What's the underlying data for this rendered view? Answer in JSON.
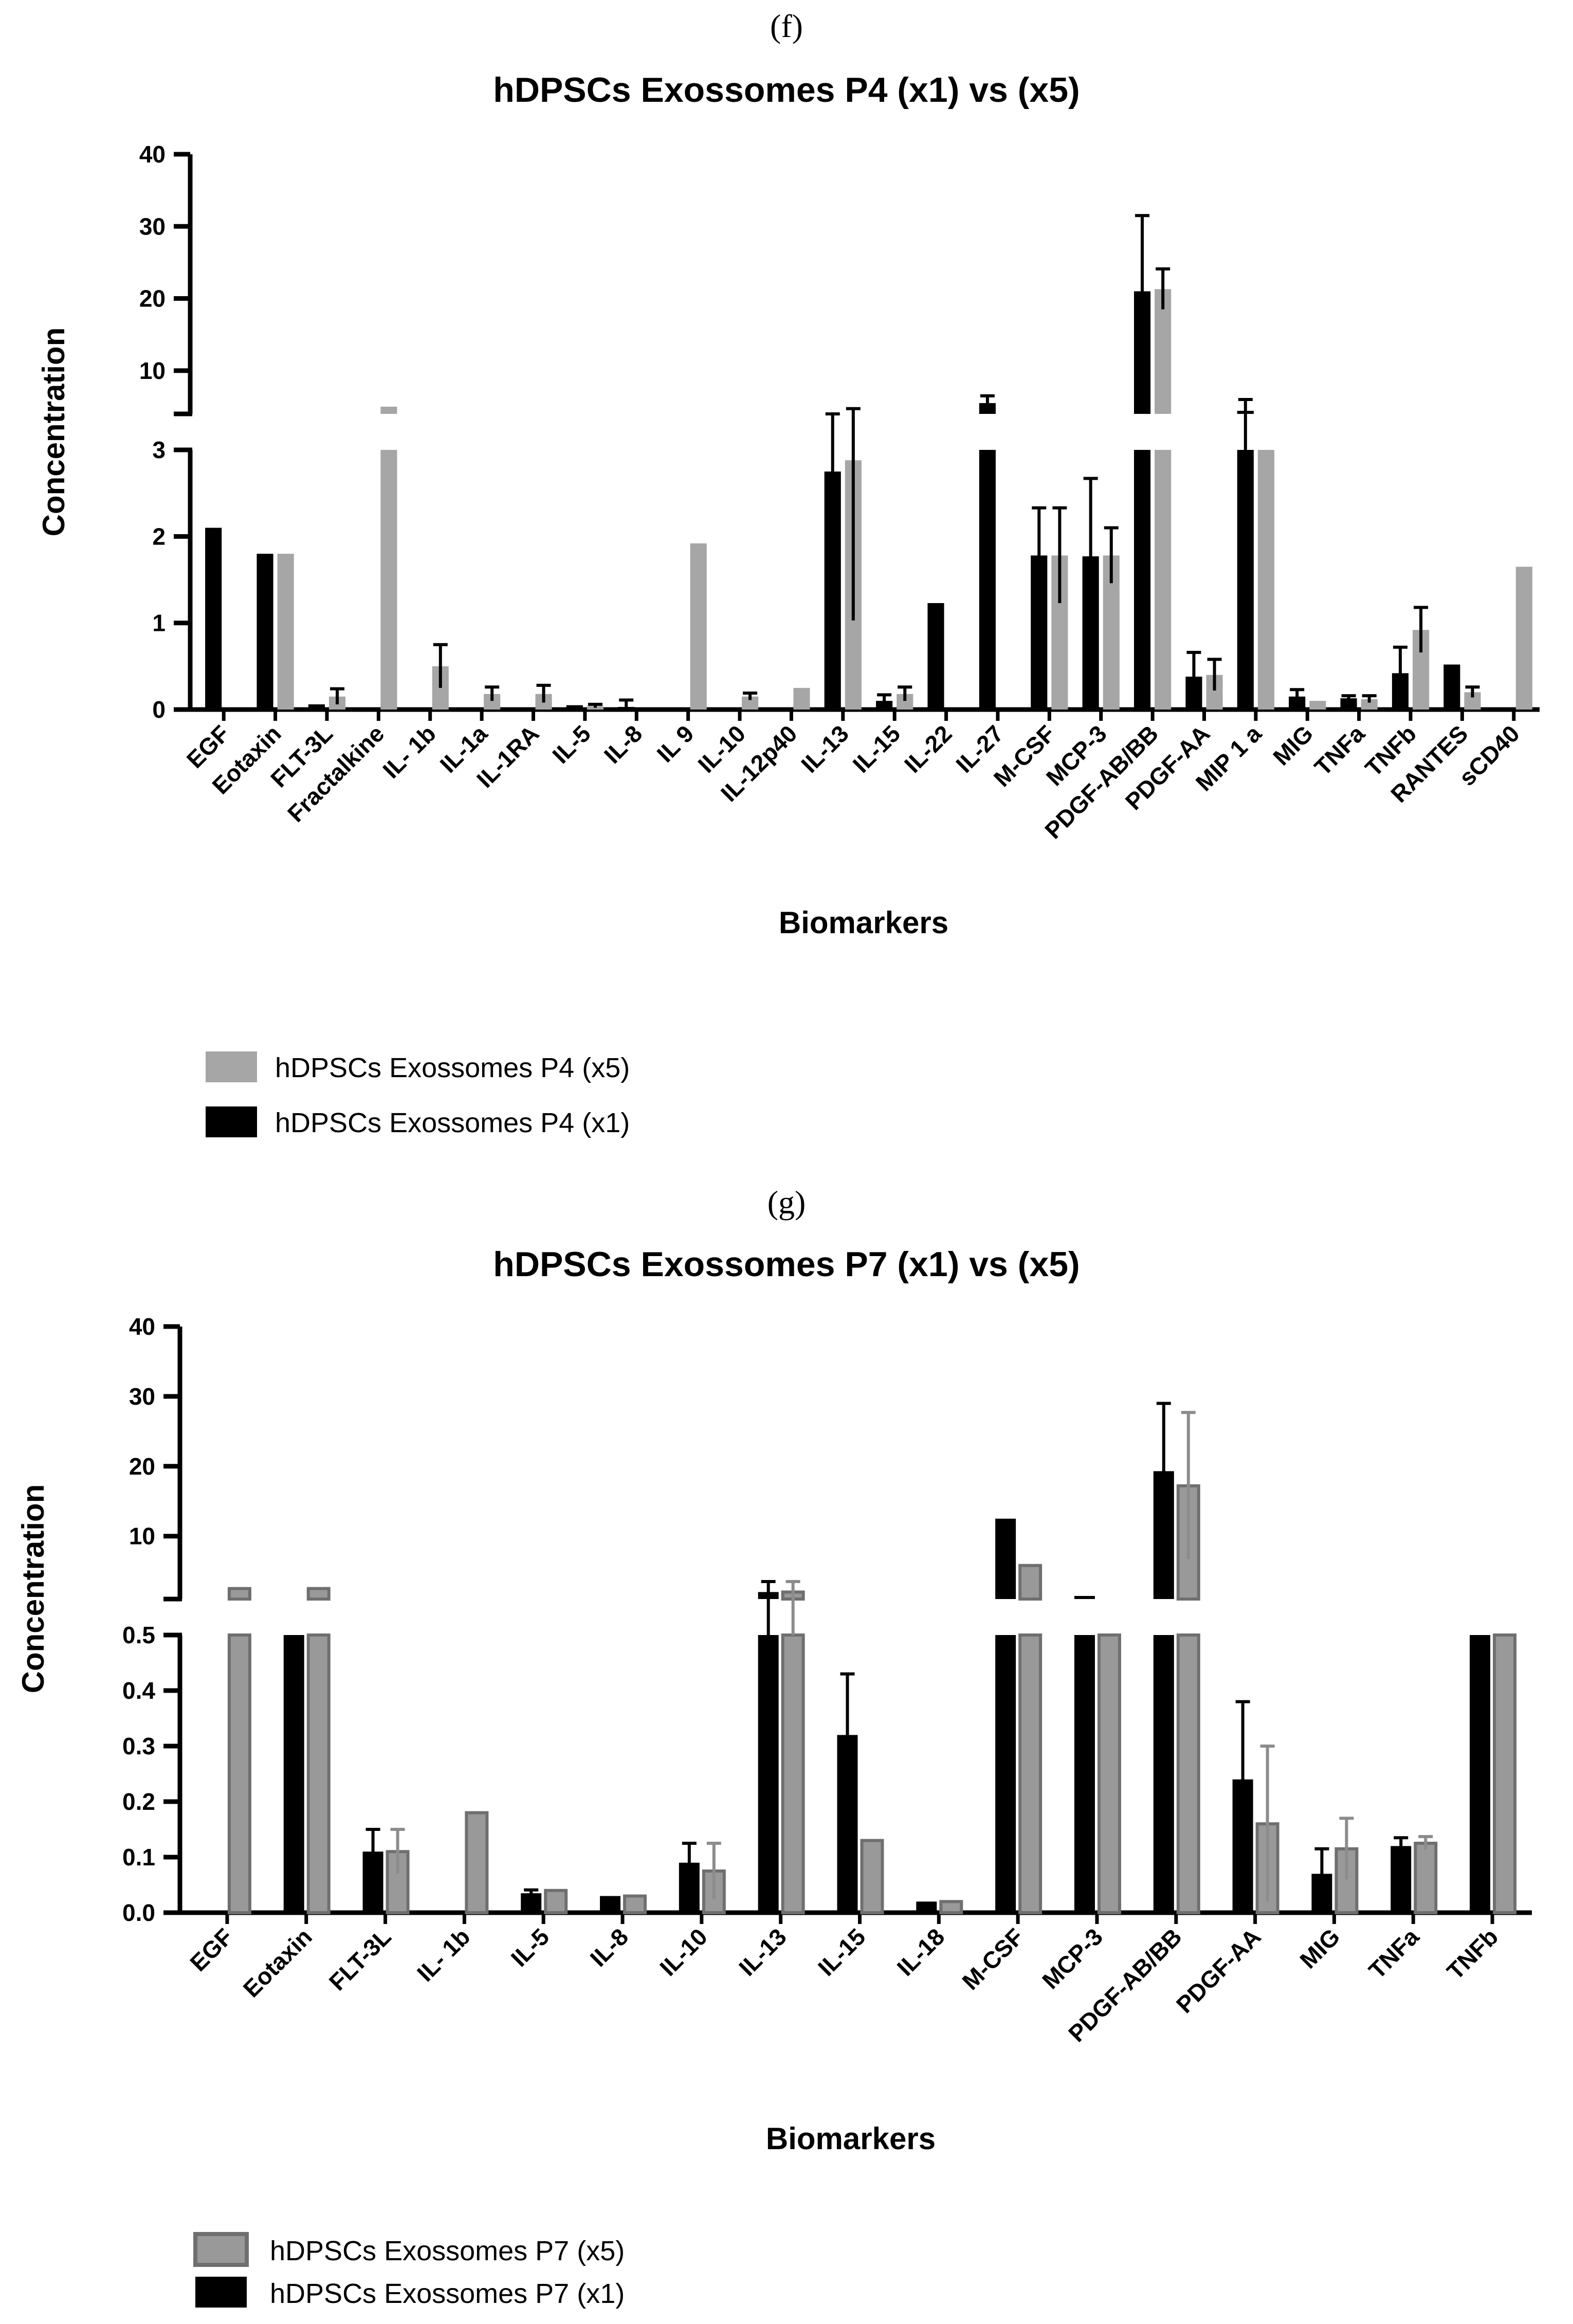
{
  "chart_data": [
    {
      "type": "bar",
      "panel": "(f)",
      "title": "hDPSCs Exossomes P4 (x1) vs (x5)",
      "xlabel": "Biomarkers",
      "ylabel": "Concentration",
      "y_break": {
        "lower_range": [
          0,
          3
        ],
        "upper_range": [
          4,
          40
        ]
      },
      "lower_ticks": [
        0,
        1,
        2,
        3
      ],
      "upper_ticks": [
        10,
        20,
        30,
        40
      ],
      "categories": [
        "EGF",
        "Eotaxin",
        "FLT-3L",
        "Fractalkine",
        "IL- 1b",
        "IL-1a",
        "IL-1RA",
        "IL-5",
        "IL-8",
        "IL 9",
        "IL-10",
        "IL-12p40",
        "IL-13",
        "IL-15",
        "IL-22",
        "IL-27",
        "M-CSF",
        "MCP-3",
        "PDGF-AB/BB",
        "PDGF-AA",
        "MIP 1 a",
        "MIG",
        "TNFa",
        "TNFb",
        "RANTES",
        "sCD40"
      ],
      "series": [
        {
          "name": "hDPSCs Exossomes P4 (x1)",
          "color": "#000000",
          "values": [
            2.1,
            1.8,
            0.06,
            0,
            0,
            0,
            0.02,
            0.05,
            0.03,
            0,
            0,
            0,
            2.75,
            0.1,
            1.23,
            5.5,
            1.78,
            1.77,
            21,
            0.38,
            3.5,
            0.15,
            0.13,
            0.42,
            0.52,
            0
          ],
          "errors": [
            0,
            0,
            0,
            0,
            0,
            0,
            0,
            0,
            0.08,
            0,
            0,
            0,
            0.9,
            0.07,
            0,
            1.0,
            0.55,
            0.9,
            10.5,
            0.28,
            2.5,
            0.08,
            0.03,
            0.3,
            0,
            0
          ]
        },
        {
          "name": "hDPSCs Exossomes P4 (x5)",
          "color": "#a6a6a6",
          "values": [
            0,
            1.8,
            0.15,
            5.0,
            0.5,
            0.18,
            0.18,
            0.04,
            0,
            1.92,
            0.15,
            0.25,
            2.88,
            0.18,
            0,
            0,
            1.78,
            1.78,
            21.3,
            0.4,
            3.0,
            0.1,
            0.12,
            0.92,
            0.2,
            1.65
          ],
          "errors": [
            0,
            0,
            0.09,
            0,
            0.25,
            0.08,
            0.1,
            0.02,
            0,
            0,
            0.04,
            0,
            1.85,
            0.08,
            0,
            0,
            0.55,
            0.32,
            2.8,
            0.18,
            0,
            0,
            0.04,
            0.26,
            0.06,
            0
          ]
        }
      ]
    },
    {
      "type": "bar",
      "panel": "(g)",
      "title": "hDPSCs Exossomes P7 (x1) vs (x5)",
      "xlabel": "Biomarkers",
      "ylabel": "Concentration",
      "y_break": {
        "lower_range": [
          0,
          0.5
        ],
        "upper_range": [
          1,
          40
        ]
      },
      "lower_ticks": [
        0.0,
        0.1,
        0.2,
        0.3,
        0.4,
        0.5
      ],
      "lower_tick_labels": [
        "0.0",
        "0.1",
        "0.2",
        "0.3",
        "0.4",
        "0.5"
      ],
      "upper_ticks": [
        10,
        20,
        30,
        40
      ],
      "categories": [
        "EGF",
        "Eotaxin",
        "FLT-3L",
        "IL- 1b",
        "IL-5",
        "IL-8",
        "IL-10",
        "IL-13",
        "IL-15",
        "IL-18",
        "M-CSF",
        "MCP-3",
        "PDGF-AB/BB",
        "PDGF-AA",
        "MIG",
        "TNFa",
        "TNFb"
      ],
      "series": [
        {
          "name": "hDPSCs Exossomes P7 (x1)",
          "color": "#000000",
          "values": [
            0,
            0.5,
            0.11,
            0,
            0.035,
            0.03,
            0.09,
            2.0,
            0.32,
            0.02,
            12.5,
            1.2,
            19.3,
            0.24,
            0.07,
            0.12,
            0.5
          ],
          "errors": [
            0,
            0,
            0.04,
            0,
            0.006,
            0,
            0.035,
            1.5,
            0.11,
            0,
            0,
            0,
            9.7,
            0.14,
            0.045,
            0.015,
            0
          ]
        },
        {
          "name": "hDPSCs Exossomes P7 (x5)",
          "color": "#999999",
          "values": [
            2.5,
            2.5,
            0.11,
            0.18,
            0.04,
            0.03,
            0.075,
            2.0,
            0.13,
            0.02,
            5.8,
            0.5,
            17.2,
            0.16,
            0.115,
            0.125,
            0.5
          ],
          "errors": [
            0,
            0,
            0.04,
            0,
            0,
            0,
            0.05,
            1.5,
            0,
            0,
            0,
            0,
            10.5,
            0.14,
            0.055,
            0.012,
            0
          ]
        }
      ]
    }
  ]
}
